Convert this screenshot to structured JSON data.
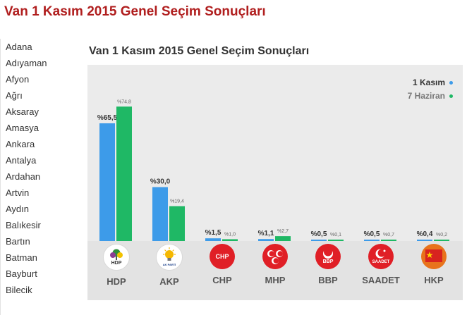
{
  "page": {
    "title": "Van 1 Kasım 2015 Genel Seçim Sonuçları"
  },
  "sidebar": {
    "items": [
      "Adana",
      "Adıyaman",
      "Afyon",
      "Ağrı",
      "Aksaray",
      "Amasya",
      "Ankara",
      "Antalya",
      "Ardahan",
      "Artvin",
      "Aydın",
      "Balıkesir",
      "Bartın",
      "Batman",
      "Bayburt",
      "Bilecik"
    ]
  },
  "colors": {
    "series_1": "#3d9be9",
    "series_2": "#1fb865",
    "title": "#b01e1e"
  },
  "chart_data": {
    "type": "bar",
    "title": "Van 1 Kasım 2015 Genel Seçim Sonuçları",
    "categories": [
      "HDP",
      "AKP",
      "CHP",
      "MHP",
      "BBP",
      "SAADET",
      "HKP"
    ],
    "series": [
      {
        "name": "1 Kasım",
        "values": [
          65.5,
          30.0,
          1.5,
          1.1,
          0.5,
          0.5,
          0.4
        ],
        "labels": [
          "%65,5",
          "%30,0",
          "%1,5",
          "%1,1",
          "%0,5",
          "%0,5",
          "%0,4"
        ]
      },
      {
        "name": "7 Haziran",
        "values": [
          74.8,
          19.4,
          1.0,
          2.7,
          0.1,
          0.7,
          0.2
        ],
        "labels": [
          "%74,8",
          "%19,4",
          "%1,0",
          "%2,7",
          "%0,1",
          "%0,7",
          "%0,2"
        ]
      }
    ],
    "ylim": [
      0,
      80
    ],
    "legend": "top-right",
    "grid": false
  },
  "legend": {
    "series_1": "1 Kasım",
    "series_2": "7 Haziran"
  },
  "logos": {
    "hdp": "HDP",
    "akp": "AK PARTİ",
    "chp": "CHP",
    "mhp_icon": "crescent-icon",
    "bbp": "BBP",
    "saadet": "SAADET",
    "hkp_icon": "star-icon"
  }
}
